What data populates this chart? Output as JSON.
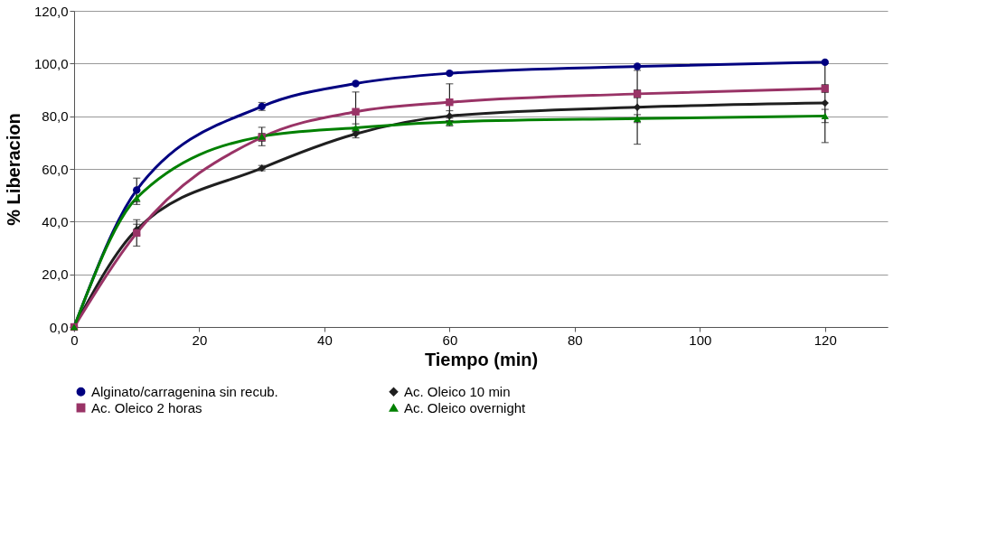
{
  "chart_data": {
    "type": "line",
    "xlabel": "Tiempo (min)",
    "ylabel": "% Liberacion",
    "xlim": [
      0,
      130
    ],
    "xticks": [
      0,
      20,
      40,
      60,
      80,
      100,
      120
    ],
    "ylim": [
      0,
      120
    ],
    "yticks": [
      {
        "value": 0,
        "label": "0,0"
      },
      {
        "value": 20,
        "label": "20,0"
      },
      {
        "value": 40,
        "label": "40,0"
      },
      {
        "value": 60,
        "label": "60,0"
      },
      {
        "value": 80,
        "label": "80,0"
      },
      {
        "value": 100,
        "label": "100,0"
      },
      {
        "value": 120,
        "label": "120,0"
      }
    ],
    "grid": "y",
    "legend": "bottom",
    "line_style": "solid",
    "x": [
      0,
      10,
      30,
      45,
      60,
      90,
      120
    ],
    "series": [
      {
        "name": "Alginato/carragenina sin recub.",
        "color": "#000080",
        "marker": "circle",
        "values": [
          0,
          52,
          83.7,
          92.4,
          96.3,
          98.9,
          100.5
        ],
        "errors": [
          null,
          4.5,
          1.5,
          null,
          null,
          null,
          null
        ]
      },
      {
        "name": "Ac. Oleico 10 min",
        "color": "#1f1f1f",
        "marker": "diamond",
        "values": [
          0,
          37,
          60.3,
          73.3,
          80.1,
          83.4,
          85
        ],
        "errors": [
          null,
          2,
          1,
          1.5,
          2,
          14,
          15
        ]
      },
      {
        "name": "Ac. Oleico 2 horas",
        "color": "#993366",
        "marker": "square",
        "values": [
          0,
          35.7,
          72,
          81.7,
          85.3,
          88.5,
          90.5
        ],
        "errors": [
          null,
          5,
          1.5,
          7.5,
          7,
          1.5,
          1.5
        ]
      },
      {
        "name": "Ac. Oleico overnight",
        "color": "#008000",
        "marker": "triangle",
        "values": [
          0,
          49,
          72.3,
          75.6,
          77.8,
          79.1,
          80.1
        ],
        "errors": [
          null,
          2.5,
          3.5,
          1.5,
          1.5,
          1.5,
          2.5
        ]
      }
    ]
  }
}
